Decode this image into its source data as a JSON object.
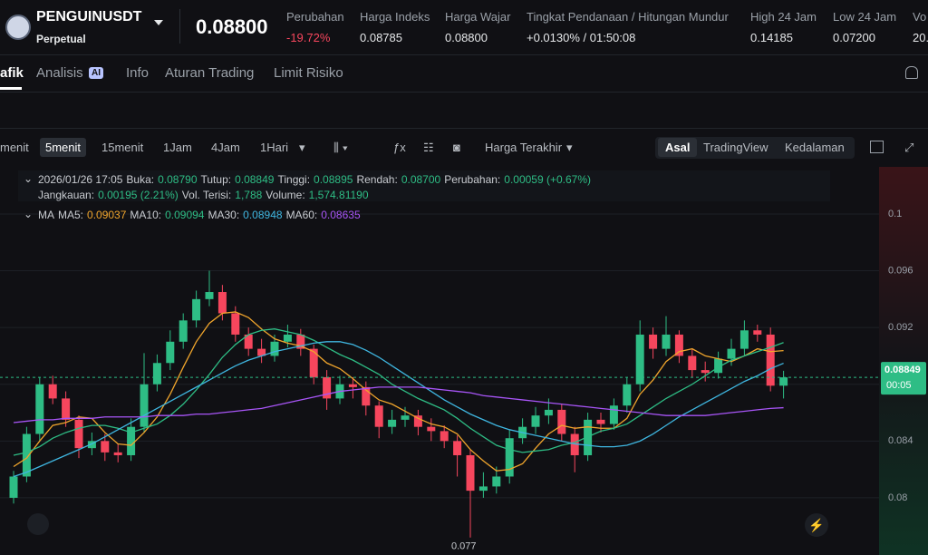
{
  "header": {
    "symbol": "PENGUINUSDT",
    "contract": "Perpetual",
    "price": "0.08800",
    "stats": [
      {
        "label": "Perubahan",
        "value": "-19.72%"
      },
      {
        "label": "Harga Indeks",
        "value": "0.08785"
      },
      {
        "label": "Harga Wajar",
        "value": "0.08800"
      },
      {
        "label": "Tingkat Pendanaan / Hitungan Mundur",
        "value": "+0.0130% / 01:50:08"
      },
      {
        "label": "High 24 Jam",
        "value": "0.14185"
      },
      {
        "label": "Low 24 Jam",
        "value": "0.07200"
      },
      {
        "label": "Vo",
        "value": "20."
      }
    ]
  },
  "tabs": [
    "afik",
    "Analisis",
    "Info",
    "Aturan Trading",
    "Limit Risiko"
  ],
  "ai_badge": "AI",
  "toolbar": {
    "intervals": [
      "menit",
      "5menit",
      "15menit",
      "1Jam",
      "4Jam",
      "1Hari"
    ],
    "price_type": "Harga Terakhir",
    "views": [
      "Asal",
      "TradingView",
      "Kedalaman"
    ]
  },
  "legend": {
    "time": "2026/01/26 17:05",
    "fields": [
      {
        "label": "Buka:",
        "value": "0.08790"
      },
      {
        "label": "Tutup:",
        "value": "0.08849"
      },
      {
        "label": "Tinggi:",
        "value": "0.08895"
      },
      {
        "label": "Rendah:",
        "value": "0.08700"
      },
      {
        "label": "Perubahan:",
        "value": "0.00059 (+0.67%)"
      }
    ],
    "fields2": [
      {
        "label": "Jangkauan:",
        "value": "0.00195 (2.21%)"
      },
      {
        "label": "Vol. Terisi:",
        "value": "1,788"
      },
      {
        "label": "Volume:",
        "value": "1,574.81190"
      }
    ],
    "ma_title": "MA"
  },
  "chart_data": {
    "type": "candlestick",
    "up_color": "#2ebd85",
    "down_color": "#f6465d",
    "ylim": [
      0.07597,
      0.10332
    ],
    "yticks": [
      0.08,
      0.084,
      0.088,
      0.092,
      0.096,
      0.1
    ],
    "grid": true,
    "open": [
      0.08,
      0.0815,
      0.0845,
      0.088,
      0.087,
      0.0855,
      0.0835,
      0.084,
      0.0832,
      0.083,
      0.085,
      0.088,
      0.0895,
      0.091,
      0.0925,
      0.094,
      0.0945,
      0.093,
      0.0915,
      0.0905,
      0.09,
      0.091,
      0.0915,
      0.0905,
      0.0885,
      0.087,
      0.088,
      0.0878,
      0.0865,
      0.085,
      0.0855,
      0.0858,
      0.085,
      0.0847,
      0.084,
      0.083,
      0.0805,
      0.0808,
      0.0815,
      0.0842,
      0.085,
      0.0858,
      0.0862,
      0.0845,
      0.083,
      0.0855,
      0.0852,
      0.0865,
      0.088,
      0.0915,
      0.0905,
      0.0915,
      0.09,
      0.089,
      0.0888,
      0.0898,
      0.0905,
      0.0918,
      0.0915,
      0.0879
    ],
    "high": [
      0.0819,
      0.085,
      0.0885,
      0.0886,
      0.0875,
      0.0858,
      0.0846,
      0.0845,
      0.0838,
      0.0856,
      0.0902,
      0.0901,
      0.0918,
      0.093,
      0.0946,
      0.096,
      0.095,
      0.0935,
      0.092,
      0.0912,
      0.0915,
      0.0922,
      0.0919,
      0.0908,
      0.089,
      0.0886,
      0.0885,
      0.0882,
      0.0868,
      0.0862,
      0.0864,
      0.0862,
      0.0856,
      0.0851,
      0.0844,
      0.0834,
      0.0818,
      0.0822,
      0.0848,
      0.0856,
      0.0864,
      0.087,
      0.0866,
      0.085,
      0.086,
      0.086,
      0.087,
      0.0885,
      0.0925,
      0.092,
      0.0928,
      0.0918,
      0.0905,
      0.0896,
      0.0903,
      0.0912,
      0.0925,
      0.0922,
      0.092,
      0.08895
    ],
    "low": [
      0.0796,
      0.0811,
      0.084,
      0.0866,
      0.085,
      0.0828,
      0.083,
      0.0826,
      0.0825,
      0.0826,
      0.0846,
      0.0875,
      0.089,
      0.0905,
      0.092,
      0.0935,
      0.0925,
      0.091,
      0.09,
      0.0895,
      0.0896,
      0.0906,
      0.09,
      0.088,
      0.0862,
      0.0866,
      0.087,
      0.0858,
      0.0842,
      0.0845,
      0.085,
      0.0844,
      0.084,
      0.0835,
      0.0815,
      0.0772,
      0.08,
      0.0803,
      0.081,
      0.0838,
      0.0845,
      0.0852,
      0.084,
      0.0818,
      0.0826,
      0.0846,
      0.0848,
      0.086,
      0.0875,
      0.0898,
      0.09,
      0.0895,
      0.0885,
      0.0882,
      0.0884,
      0.0893,
      0.09,
      0.091,
      0.0875,
      0.087
    ],
    "close": [
      0.0815,
      0.0845,
      0.088,
      0.087,
      0.0855,
      0.0835,
      0.084,
      0.0832,
      0.083,
      0.085,
      0.088,
      0.0895,
      0.091,
      0.0925,
      0.094,
      0.0945,
      0.093,
      0.0915,
      0.0905,
      0.09,
      0.091,
      0.0915,
      0.0905,
      0.0885,
      0.087,
      0.088,
      0.0878,
      0.0865,
      0.085,
      0.0855,
      0.0858,
      0.085,
      0.0847,
      0.084,
      0.083,
      0.0805,
      0.0808,
      0.0815,
      0.0842,
      0.085,
      0.0858,
      0.0862,
      0.0845,
      0.083,
      0.0855,
      0.0852,
      0.0865,
      0.088,
      0.0915,
      0.0905,
      0.0915,
      0.09,
      0.089,
      0.0888,
      0.0898,
      0.0905,
      0.0918,
      0.0915,
      0.0879,
      0.08849
    ],
    "series": [
      {
        "name": "MA5:",
        "color": "#f0a52c",
        "value_label": "0.09037",
        "values": [
          0.0822,
          0.0828,
          0.084,
          0.0851,
          0.0853,
          0.0857,
          0.0856,
          0.0846,
          0.0838,
          0.0837,
          0.0846,
          0.0857,
          0.0873,
          0.0892,
          0.091,
          0.0923,
          0.093,
          0.0931,
          0.0927,
          0.0919,
          0.0912,
          0.0909,
          0.0907,
          0.0903,
          0.0895,
          0.0891,
          0.0884,
          0.0876,
          0.0869,
          0.0866,
          0.0861,
          0.0856,
          0.0852,
          0.085,
          0.0845,
          0.0834,
          0.0826,
          0.0819,
          0.082,
          0.0824,
          0.0835,
          0.0845,
          0.0851,
          0.0849,
          0.085,
          0.0849,
          0.0849,
          0.0856,
          0.0873,
          0.0883,
          0.0896,
          0.0903,
          0.0905,
          0.09,
          0.0898,
          0.0896,
          0.09,
          0.0905,
          0.0903,
          0.09037
        ]
      },
      {
        "name": "MA10:",
        "color": "#2ebd85",
        "value_label": "0.09094",
        "values": [
          0.083,
          0.0832,
          0.0836,
          0.0842,
          0.0846,
          0.0849,
          0.0851,
          0.0851,
          0.0849,
          0.0846,
          0.0849,
          0.0852,
          0.0858,
          0.0866,
          0.0876,
          0.0887,
          0.0899,
          0.0908,
          0.0915,
          0.0918,
          0.0919,
          0.0917,
          0.0915,
          0.0911,
          0.0906,
          0.0901,
          0.0897,
          0.0892,
          0.0887,
          0.088,
          0.0875,
          0.087,
          0.0866,
          0.0862,
          0.0856,
          0.0849,
          0.0843,
          0.0837,
          0.0834,
          0.0832,
          0.0833,
          0.0834,
          0.0837,
          0.0839,
          0.0843,
          0.0847,
          0.0849,
          0.0852,
          0.0858,
          0.0864,
          0.087,
          0.0875,
          0.088,
          0.0886,
          0.0892,
          0.0897,
          0.09,
          0.0903,
          0.0906,
          0.09094
        ]
      },
      {
        "name": "MA30:",
        "color": "#3fb6e0",
        "value_label": "0.08948",
        "values": [
          0.0815,
          0.0818,
          0.0822,
          0.0826,
          0.083,
          0.0834,
          0.0838,
          0.0843,
          0.0848,
          0.0853,
          0.0858,
          0.0863,
          0.0868,
          0.0873,
          0.0878,
          0.0883,
          0.0888,
          0.0893,
          0.0897,
          0.09,
          0.0903,
          0.0905,
          0.0907,
          0.0909,
          0.091,
          0.091,
          0.0908,
          0.0904,
          0.0899,
          0.0893,
          0.0887,
          0.0881,
          0.0875,
          0.0869,
          0.0864,
          0.0859,
          0.0855,
          0.0851,
          0.0848,
          0.0846,
          0.0844,
          0.0842,
          0.084,
          0.0838,
          0.0837,
          0.0836,
          0.0836,
          0.0837,
          0.084,
          0.0845,
          0.0851,
          0.0857,
          0.0862,
          0.0867,
          0.0872,
          0.0877,
          0.0882,
          0.0886,
          0.0891,
          0.08948
        ]
      },
      {
        "name": "MA60:",
        "color": "#a855f7",
        "value_label": "0.08635",
        "values": [
          0.0853,
          0.0854,
          0.0855,
          0.0855,
          0.0856,
          0.0856,
          0.0856,
          0.0857,
          0.0857,
          0.0857,
          0.0857,
          0.0858,
          0.0858,
          0.0858,
          0.0859,
          0.0859,
          0.086,
          0.0861,
          0.0862,
          0.0863,
          0.0865,
          0.0867,
          0.0869,
          0.0871,
          0.0873,
          0.0875,
          0.0876,
          0.0877,
          0.0878,
          0.0878,
          0.0878,
          0.0878,
          0.0877,
          0.0876,
          0.0875,
          0.0874,
          0.0872,
          0.0871,
          0.087,
          0.0869,
          0.0868,
          0.0867,
          0.0866,
          0.0865,
          0.0864,
          0.0863,
          0.0862,
          0.0861,
          0.086,
          0.0859,
          0.0858,
          0.0858,
          0.0858,
          0.0858,
          0.0859,
          0.086,
          0.0861,
          0.0862,
          0.0863,
          0.08635
        ]
      }
    ],
    "last_price": {
      "value": 0.08849,
      "label": "0.08849"
    },
    "countdown": "00:05",
    "low_marker": {
      "value": 0.0772,
      "label": "0.077"
    }
  }
}
